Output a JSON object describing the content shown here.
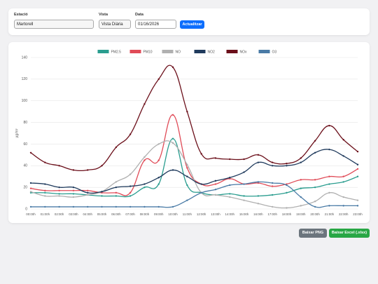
{
  "controls": {
    "station_label": "Estació",
    "station_value": "Martorell",
    "view_label": "Vista",
    "view_value": "Vista Diària",
    "date_label": "Data",
    "date_value": "01/16/2026",
    "submit": "Actualitzar"
  },
  "chart_data": {
    "type": "line",
    "y_label": "µg/m³",
    "categories": [
      "00:00h",
      "01:00h",
      "02:00h",
      "03:00h",
      "04:00h",
      "05:00h",
      "06:00h",
      "07:00h",
      "08:00h",
      "09:00h",
      "10:00h",
      "11:00h",
      "12:00h",
      "13:00h",
      "14:00h",
      "15:00h",
      "16:00h",
      "17:00h",
      "18:00h",
      "19:00h",
      "20:00h",
      "21:00h",
      "22:00h",
      "23:00h"
    ],
    "ylim": [
      0,
      140
    ],
    "yticks": [
      0,
      20,
      40,
      60,
      80,
      100,
      120,
      140
    ],
    "grid": true,
    "series": [
      {
        "name": "PM2.5",
        "color": "#2a9d8f",
        "values": [
          15,
          15,
          14,
          14,
          13,
          12,
          12,
          12,
          20,
          23,
          65,
          22,
          15,
          13,
          14,
          12,
          12,
          13,
          15,
          19,
          20,
          23,
          25,
          30
        ]
      },
      {
        "name": "PM10",
        "color": "#e04b57",
        "values": [
          19,
          17,
          17,
          17,
          17,
          15,
          15,
          15,
          45,
          45,
          87,
          38,
          23,
          23,
          28,
          23,
          24,
          21,
          23,
          27,
          27,
          30,
          30,
          37
        ]
      },
      {
        "name": "NO",
        "color": "#b0b0b0",
        "values": [
          16,
          12,
          12,
          11,
          13,
          16,
          25,
          32,
          48,
          60,
          61,
          41,
          15,
          13,
          11,
          8,
          5,
          2,
          1,
          3,
          7,
          15,
          11,
          8
        ]
      },
      {
        "name": "NO2",
        "color": "#1f3a5c",
        "values": [
          24,
          23,
          20,
          20,
          15,
          16,
          20,
          21,
          23,
          29,
          36,
          30,
          23,
          26,
          29,
          34,
          43,
          40,
          40,
          43,
          52,
          55,
          49,
          41
        ]
      },
      {
        "name": "NOx",
        "color": "#6b0f1a",
        "values": [
          52,
          43,
          40,
          36,
          36,
          40,
          57,
          69,
          97,
          120,
          131,
          90,
          51,
          47,
          46,
          46,
          50,
          43,
          42,
          47,
          63,
          77,
          64,
          53
        ]
      },
      {
        "name": "O3",
        "color": "#4a7ba6",
        "values": [
          2,
          2,
          2,
          2,
          2,
          2,
          2,
          2,
          2,
          2,
          2,
          8,
          15,
          18,
          22,
          23,
          25,
          24,
          22,
          11,
          2,
          3,
          3,
          3
        ]
      }
    ]
  },
  "buttons": {
    "png": "Baixar PNG",
    "excel": "Baixar Excel (.xlsx)"
  }
}
